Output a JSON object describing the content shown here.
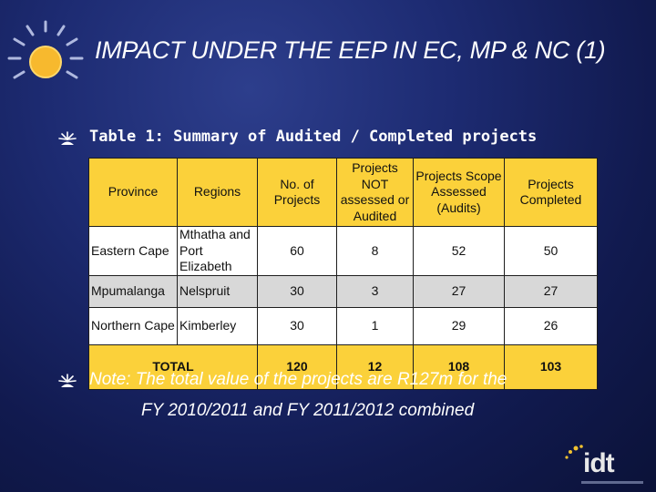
{
  "slide": {
    "title": "IMPACT UNDER THE EEP IN EC, MP & NC (1)",
    "table_caption": "Table 1: Summary of Audited / Completed projects",
    "note_line1": "Note: The total value of the projects are R127m for the",
    "note_line2": "FY 2010/2011 and FY 2011/2012 combined"
  },
  "table": {
    "headers": [
      "Province",
      "Regions",
      "No. of Projects",
      "Projects NOT assessed or Audited",
      "Projects Scope Assessed (Audits)",
      "Projects Completed"
    ],
    "rows": [
      [
        "Eastern Cape",
        "Mthatha and Port Elizabeth",
        "60",
        "8",
        "52",
        "50"
      ],
      [
        "Mpumalanga",
        "Nelspruit",
        "30",
        "3",
        "27",
        "27"
      ],
      [
        "Northern Cape",
        "Kimberley",
        "30",
        "1",
        "29",
        "26"
      ]
    ],
    "total": {
      "label": "TOTAL",
      "values": [
        "120",
        "12",
        "108",
        "103"
      ]
    }
  },
  "logo": {
    "text": "idt",
    "icon": "idt-logo"
  },
  "colors": {
    "background": "#1d2b72",
    "table_header": "#fbd13a",
    "row_grey": "#d8d8d8",
    "sun": "#f7b92e"
  }
}
